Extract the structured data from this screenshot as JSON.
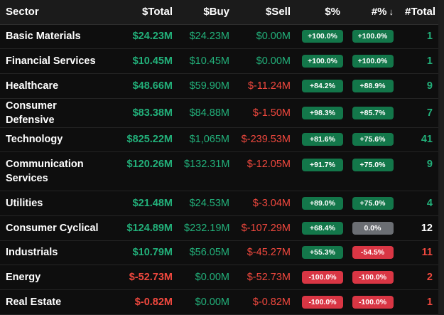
{
  "headers": {
    "sector": "Sector",
    "total": "$Total",
    "buy": "$Buy",
    "sell": "$Sell",
    "pct": "$%",
    "count_pct": "#%",
    "sort_icon": "↓",
    "count": "#Total"
  },
  "rows": [
    {
      "sector": "Basic Materials",
      "total": "$24.23M",
      "buy": "$24.23M",
      "sell": "$0.00M",
      "pct": "+100.0%",
      "count_pct": "+100.0%",
      "count": "1"
    },
    {
      "sector": "Financial Services",
      "total": "$10.45M",
      "buy": "$10.45M",
      "sell": "$0.00M",
      "pct": "+100.0%",
      "count_pct": "+100.0%",
      "count": "1"
    },
    {
      "sector": "Healthcare",
      "total": "$48.66M",
      "buy": "$59.90M",
      "sell": "$-11.24M",
      "pct": "+84.2%",
      "count_pct": "+88.9%",
      "count": "9"
    },
    {
      "sector": "Consumer Defensive",
      "total": "$83.38M",
      "buy": "$84.88M",
      "sell": "$-1.50M",
      "pct": "+98.3%",
      "count_pct": "+85.7%",
      "count": "7"
    },
    {
      "sector": "Technology",
      "total": "$825.22M",
      "buy": "$1,065M",
      "sell": "$-239.53M",
      "pct": "+81.6%",
      "count_pct": "+75.6%",
      "count": "41"
    },
    {
      "sector": "Communication Services",
      "total": "$120.26M",
      "buy": "$132.31M",
      "sell": "$-12.05M",
      "pct": "+91.7%",
      "count_pct": "+75.0%",
      "count": "9"
    },
    {
      "sector": "Utilities",
      "total": "$21.48M",
      "buy": "$24.53M",
      "sell": "$-3.04M",
      "pct": "+89.0%",
      "count_pct": "+75.0%",
      "count": "4"
    },
    {
      "sector": "Consumer Cyclical",
      "total": "$124.89M",
      "buy": "$232.19M",
      "sell": "$-107.29M",
      "pct": "+68.4%",
      "count_pct": "0.0%",
      "count": "12"
    },
    {
      "sector": "Industrials",
      "total": "$10.79M",
      "buy": "$56.05M",
      "sell": "$-45.27M",
      "pct": "+55.3%",
      "count_pct": "-54.5%",
      "count": "11"
    },
    {
      "sector": "Energy",
      "total": "$-52.73M",
      "buy": "$0.00M",
      "sell": "$-52.73M",
      "pct": "-100.0%",
      "count_pct": "-100.0%",
      "count": "2"
    },
    {
      "sector": "Real Estate",
      "total": "$-0.82M",
      "buy": "$0.00M",
      "sell": "$-0.82M",
      "pct": "-100.0%",
      "count_pct": "-100.0%",
      "count": "1"
    }
  ],
  "colors": {
    "positive": "#22b07a",
    "negative": "#f0483e",
    "neutral": "#ffffff",
    "pill_positive": "#13774a",
    "pill_negative": "#d93644",
    "pill_neutral": "#6b6e73"
  }
}
